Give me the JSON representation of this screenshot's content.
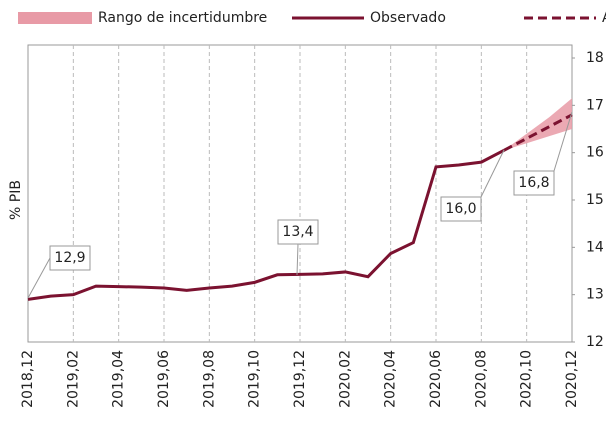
{
  "chart_data": {
    "type": "line",
    "y_label": "% PIB",
    "categories": [
      "2018,12",
      null,
      "2019,02",
      null,
      "2019,04",
      null,
      "2019,06",
      null,
      "2019,08",
      null,
      "2019,10",
      null,
      "2019,12",
      null,
      "2020,02",
      null,
      "2020,04",
      null,
      "2020,06",
      null,
      "2020,08",
      null,
      "2020,10",
      null,
      "2020,12"
    ],
    "series": [
      {
        "name": "Observado",
        "color": "#7b1230",
        "style": "solid",
        "values": [
          12.9,
          12.97,
          13.0,
          13.18,
          13.17,
          13.16,
          13.14,
          13.09,
          13.14,
          13.18,
          13.26,
          13.42,
          13.43,
          13.44,
          13.48,
          13.38,
          13.87,
          14.1,
          15.7,
          15.74,
          15.8,
          16.05,
          null,
          null,
          null
        ]
      },
      {
        "name": "AIReF",
        "color": "#7b1230",
        "style": "dashed",
        "values": [
          null,
          null,
          null,
          null,
          null,
          null,
          null,
          null,
          null,
          null,
          null,
          null,
          null,
          null,
          null,
          null,
          null,
          null,
          null,
          null,
          null,
          16.05,
          16.3,
          16.55,
          16.8
        ]
      }
    ],
    "band": {
      "name": "Rango de incertidumbre",
      "color": "#e89aa6",
      "low": [
        null,
        null,
        null,
        null,
        null,
        null,
        null,
        null,
        null,
        null,
        null,
        null,
        null,
        null,
        null,
        null,
        null,
        null,
        null,
        null,
        null,
        16.05,
        16.2,
        16.35,
        16.5
      ],
      "high": [
        null,
        null,
        null,
        null,
        null,
        null,
        null,
        null,
        null,
        null,
        null,
        null,
        null,
        null,
        null,
        null,
        null,
        null,
        null,
        null,
        null,
        16.05,
        16.4,
        16.75,
        17.15
      ]
    },
    "annotations": [
      {
        "text": "12,9"
      },
      {
        "text": "13,4"
      },
      {
        "text": "16,0"
      },
      {
        "text": "16,8"
      }
    ],
    "ylim": [
      12,
      18
    ],
    "yticks": [
      12,
      13,
      14,
      15,
      16,
      17,
      18
    ],
    "grid": "x"
  }
}
